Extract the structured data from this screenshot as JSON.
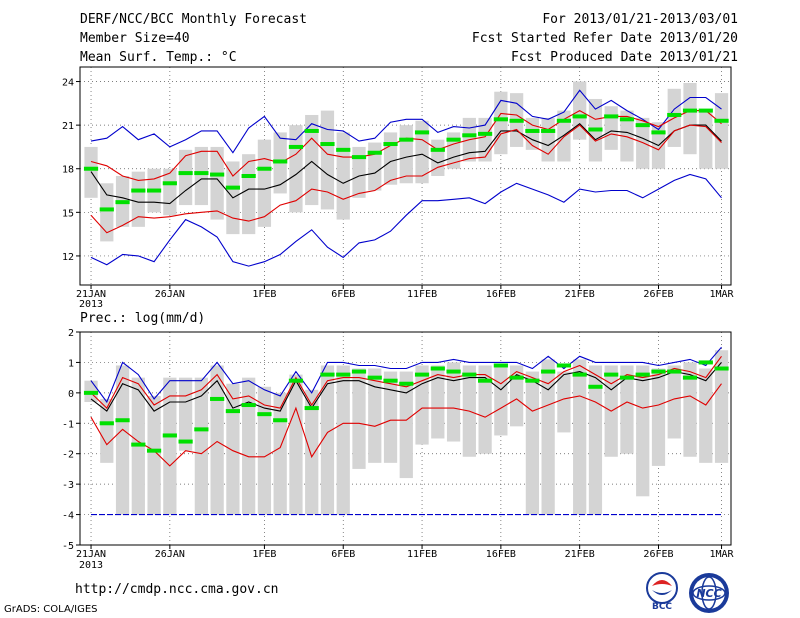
{
  "header": {
    "title": "DERF/NCC/BCC Monthly Forecast",
    "member_size": "Member Size=40",
    "variable": "Mean Surf. Temp.: °C",
    "period": "For 2013/01/21-2013/03/01",
    "started": "Fcst Started Refer Date 2013/01/20",
    "produced": "Fcst Produced Date 2013/01/21"
  },
  "prec_label": "Prec.: log(mm/d)",
  "url": "http://cmdp.ncc.cma.gov.cn",
  "credit": "GrADS: COLA/IGES",
  "logos": {
    "bcc": "BCC",
    "ncc": "NCC"
  },
  "colors": {
    "median": "#00e000",
    "mean": "#000000",
    "spread": "#e00000",
    "extreme": "#0000cc",
    "bar": "#d4d4d4"
  },
  "chart_data": [
    {
      "type": "line",
      "title": "Mean Surf. Temp.: °C",
      "x_tick_labels": [
        "21JAN",
        "26JAN",
        "1FEB",
        "6FEB",
        "11FEB",
        "16FEB",
        "21FEB",
        "26FEB",
        "1MAR"
      ],
      "x_tick_days": [
        0,
        5,
        11,
        16,
        21,
        26,
        31,
        36,
        40
      ],
      "year_label": "2013",
      "ylim": [
        10,
        25
      ],
      "yticks": [
        12,
        15,
        18,
        21,
        24
      ],
      "series": [
        {
          "name": "max",
          "values": [
            19.9,
            20.1,
            20.9,
            20.0,
            20.4,
            19.5,
            20.0,
            20.6,
            20.6,
            19.1,
            20.8,
            21.6,
            20.1,
            20.0,
            21.1,
            20.7,
            20.6,
            19.9,
            20.1,
            21.2,
            21.4,
            21.4,
            20.5,
            20.9,
            20.8,
            21.0,
            22.7,
            22.5,
            21.6,
            21.4,
            21.9,
            23.4,
            22.1,
            22.7,
            22.0,
            21.4,
            20.7,
            22.1,
            22.9,
            22.9,
            22.1
          ]
        },
        {
          "name": "upper",
          "values": [
            18.5,
            18.2,
            17.5,
            17.2,
            17.3,
            17.7,
            18.9,
            19.2,
            19.2,
            17.5,
            18.5,
            18.7,
            18.4,
            19.0,
            20.1,
            19.0,
            18.8,
            18.8,
            19.0,
            19.6,
            20.1,
            20.0,
            19.3,
            19.7,
            20.0,
            20.2,
            21.8,
            21.7,
            21.0,
            20.7,
            21.4,
            22.0,
            21.4,
            21.6,
            21.6,
            21.3,
            20.9,
            21.5,
            22.0,
            22.0,
            21.1
          ]
        },
        {
          "name": "mean",
          "values": [
            17.8,
            16.2,
            16.0,
            15.7,
            15.7,
            15.6,
            16.5,
            17.3,
            17.3,
            16.0,
            16.6,
            16.6,
            16.9,
            17.6,
            18.5,
            17.6,
            17.0,
            17.5,
            17.7,
            18.5,
            18.8,
            19.0,
            18.4,
            18.8,
            19.1,
            19.2,
            20.6,
            20.6,
            20.0,
            19.6,
            20.3,
            21.1,
            20.0,
            20.6,
            20.5,
            20.1,
            19.6,
            20.6,
            21.0,
            21.0,
            19.9
          ]
        },
        {
          "name": "lower",
          "values": [
            14.8,
            13.6,
            14.1,
            14.7,
            14.6,
            14.7,
            14.9,
            15.0,
            15.1,
            14.6,
            14.4,
            14.7,
            15.5,
            15.8,
            16.6,
            16.4,
            15.9,
            16.3,
            16.5,
            17.2,
            17.5,
            17.5,
            18.1,
            18.4,
            18.7,
            18.8,
            20.4,
            20.7,
            19.6,
            19.0,
            20.2,
            21.0,
            19.9,
            20.4,
            20.2,
            19.8,
            19.3,
            20.6,
            21.0,
            20.9,
            19.8
          ]
        },
        {
          "name": "min",
          "values": [
            11.9,
            11.4,
            12.1,
            12.0,
            11.6,
            13.1,
            14.5,
            14.0,
            13.3,
            11.6,
            11.3,
            11.6,
            12.1,
            13.0,
            13.8,
            12.6,
            11.9,
            12.9,
            13.1,
            13.7,
            14.8,
            15.8,
            15.8,
            15.9,
            16.0,
            15.6,
            16.4,
            17.0,
            16.6,
            16.2,
            15.7,
            16.6,
            16.4,
            16.5,
            16.5,
            16.0,
            16.6,
            17.2,
            17.6,
            17.3,
            16.0
          ]
        }
      ],
      "box_top": [
        19.5,
        17.0,
        17.5,
        17.8,
        18.0,
        18.0,
        19.3,
        19.5,
        19.5,
        18.5,
        19.0,
        20.0,
        20.5,
        21.0,
        21.7,
        22.0,
        20.5,
        19.5,
        19.8,
        20.5,
        21.0,
        21.3,
        20.0,
        20.5,
        21.5,
        21.5,
        23.3,
        23.2,
        21.5,
        21.5,
        22.0,
        24.0,
        22.8,
        22.3,
        22.0,
        21.5,
        21.2,
        23.5,
        23.9,
        22.0,
        23.2
      ],
      "box_bottom": [
        16.0,
        13.0,
        14.0,
        14.0,
        15.0,
        14.8,
        15.5,
        15.5,
        14.5,
        13.5,
        13.5,
        14.0,
        16.3,
        15.0,
        15.5,
        15.2,
        14.5,
        16.0,
        16.5,
        16.9,
        17.0,
        17.0,
        17.5,
        18.0,
        18.5,
        18.5,
        19.0,
        19.5,
        19.3,
        18.5,
        18.5,
        20.0,
        18.5,
        19.3,
        18.5,
        18.0,
        18.0,
        19.5,
        19.0,
        18.0,
        18.0
      ],
      "median": [
        18.0,
        15.2,
        15.7,
        16.5,
        16.5,
        17.0,
        17.7,
        17.7,
        17.6,
        16.7,
        17.5,
        18.0,
        18.5,
        19.5,
        20.6,
        19.7,
        19.3,
        18.8,
        19.1,
        19.7,
        20.0,
        20.5,
        19.3,
        20.0,
        20.3,
        20.4,
        21.4,
        21.3,
        20.6,
        20.6,
        21.3,
        21.6,
        20.7,
        21.6,
        21.4,
        21.0,
        20.5,
        21.7,
        22.0,
        22.0,
        21.3
      ]
    },
    {
      "type": "line",
      "title": "Prec.: log(mm/d)",
      "x_tick_labels": [
        "21JAN",
        "26JAN",
        "1FEB",
        "6FEB",
        "11FEB",
        "16FEB",
        "21FEB",
        "26FEB",
        "1MAR"
      ],
      "x_tick_days": [
        0,
        5,
        11,
        16,
        21,
        26,
        31,
        36,
        40
      ],
      "year_label": "2013",
      "ylim": [
        -5,
        2
      ],
      "yticks": [
        -5,
        -4,
        -3,
        -2,
        -1,
        0,
        1,
        2
      ],
      "series": [
        {
          "name": "max",
          "values": [
            0.4,
            -0.3,
            1.0,
            0.6,
            -0.2,
            0.4,
            0.4,
            0.4,
            1.0,
            0.3,
            0.4,
            0.1,
            -0.1,
            0.7,
            0.0,
            1.0,
            1.0,
            0.9,
            0.9,
            0.8,
            0.8,
            1.0,
            1.0,
            1.1,
            1.0,
            1.0,
            1.0,
            1.0,
            0.8,
            1.2,
            0.8,
            1.2,
            1.0,
            1.0,
            1.0,
            1.0,
            0.9,
            1.0,
            1.1,
            0.9,
            1.5
          ]
        },
        {
          "name": "upper",
          "values": [
            0.0,
            -0.5,
            0.5,
            0.3,
            -0.4,
            -0.1,
            -0.1,
            0.1,
            0.6,
            -0.2,
            -0.1,
            -0.4,
            -0.5,
            0.5,
            -0.4,
            0.4,
            0.5,
            0.5,
            0.4,
            0.3,
            0.2,
            0.4,
            0.6,
            0.5,
            0.6,
            0.6,
            0.3,
            0.7,
            0.5,
            0.3,
            0.7,
            0.9,
            0.6,
            0.3,
            0.6,
            0.5,
            0.6,
            0.8,
            0.7,
            0.5,
            1.2
          ]
        },
        {
          "name": "mean",
          "values": [
            -0.2,
            -0.6,
            0.3,
            0.1,
            -0.6,
            -0.3,
            -0.3,
            -0.1,
            0.4,
            -0.5,
            -0.3,
            -0.5,
            -0.6,
            0.4,
            -0.5,
            0.3,
            0.4,
            0.4,
            0.2,
            0.1,
            0.0,
            0.3,
            0.5,
            0.4,
            0.5,
            0.5,
            0.1,
            0.6,
            0.4,
            0.1,
            0.6,
            0.7,
            0.5,
            0.1,
            0.5,
            0.4,
            0.5,
            0.7,
            0.6,
            0.4,
            1.0
          ]
        },
        {
          "name": "lower",
          "values": [
            -0.8,
            -1.7,
            -1.2,
            -1.6,
            -1.9,
            -2.4,
            -1.9,
            -2.0,
            -1.6,
            -1.9,
            -2.1,
            -2.1,
            -1.8,
            -0.5,
            -2.1,
            -1.3,
            -1.0,
            -1.0,
            -1.1,
            -0.9,
            -0.9,
            -0.5,
            -0.5,
            -0.5,
            -0.6,
            -0.8,
            -0.5,
            -0.2,
            -0.6,
            -0.4,
            -0.2,
            -0.1,
            -0.3,
            -0.6,
            -0.3,
            -0.5,
            -0.4,
            -0.2,
            -0.1,
            -0.4,
            0.3
          ]
        },
        {
          "name": "min",
          "values": [
            -4.0,
            -4.0,
            -4.0,
            -4.0,
            -4.0,
            -4.0,
            -4.0,
            -4.0,
            -4.0,
            -4.0,
            -4.0,
            -4.0,
            -4.0,
            -4.0,
            -4.0,
            -4.0,
            -4.0,
            -4.0,
            -4.0,
            -4.0,
            -4.0,
            -4.0,
            -4.0,
            -4.0,
            -4.0,
            -4.0,
            -4.0,
            -4.0,
            -4.0,
            -4.0,
            -4.0,
            -4.0,
            -4.0,
            -4.0,
            -4.0,
            -4.0,
            -4.0,
            -4.0,
            -4.0,
            -4.0,
            -4.0
          ]
        }
      ],
      "box_top": [
        0.4,
        -0.2,
        0.9,
        0.5,
        -0.1,
        0.5,
        0.5,
        0.5,
        0.9,
        0.3,
        0.5,
        0.2,
        0.0,
        0.6,
        0.1,
        0.9,
        0.9,
        0.8,
        0.8,
        0.7,
        0.7,
        0.9,
        0.9,
        1.0,
        0.9,
        0.9,
        0.9,
        0.9,
        0.7,
        1.1,
        0.7,
        1.1,
        0.9,
        0.9,
        0.9,
        0.9,
        0.8,
        0.9,
        1.0,
        0.8,
        1.4
      ],
      "box_bottom": [
        -0.3,
        -2.3,
        -4.0,
        -4.0,
        -4.0,
        -4.0,
        -1.9,
        -4.0,
        -4.0,
        -4.0,
        -4.0,
        -4.0,
        -4.0,
        -4.0,
        -4.0,
        -4.0,
        -4.0,
        -2.5,
        -2.3,
        -2.3,
        -2.8,
        -1.7,
        -1.5,
        -1.6,
        -2.1,
        -2.0,
        -1.4,
        -1.1,
        -4.0,
        -4.0,
        -1.3,
        -4.0,
        -4.0,
        -2.1,
        -2.0,
        -3.4,
        -2.4,
        -1.5,
        -2.1,
        -2.3,
        -2.3
      ],
      "median": [
        0.0,
        -1.0,
        -0.9,
        -1.7,
        -1.9,
        -1.4,
        -1.6,
        -1.2,
        -0.2,
        -0.6,
        -0.4,
        -0.7,
        -0.9,
        0.4,
        -0.5,
        0.6,
        0.6,
        0.7,
        0.5,
        0.4,
        0.3,
        0.6,
        0.8,
        0.7,
        0.6,
        0.4,
        0.9,
        0.5,
        0.4,
        0.7,
        0.9,
        0.6,
        0.2,
        0.6,
        0.5,
        0.6,
        0.7,
        0.7,
        0.5,
        1.0,
        0.8
      ]
    }
  ]
}
